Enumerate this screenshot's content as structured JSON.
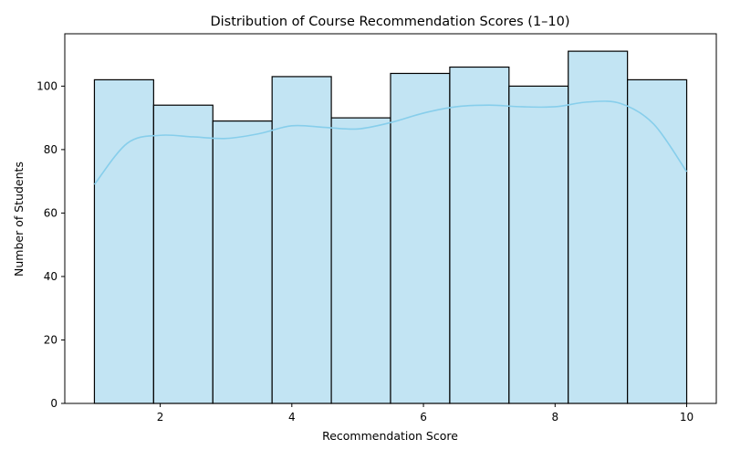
{
  "chart_data": {
    "type": "bar",
    "title": "Distribution of Course Recommendation Scores (1–10)",
    "xlabel": "Recommendation Score",
    "ylabel": "Number of Students",
    "bins": [
      {
        "start": 1.0,
        "end": 1.9,
        "count": 102
      },
      {
        "start": 1.9,
        "end": 2.8,
        "count": 94
      },
      {
        "start": 2.8,
        "end": 3.7,
        "count": 89
      },
      {
        "start": 3.7,
        "end": 4.6,
        "count": 103
      },
      {
        "start": 4.6,
        "end": 5.5,
        "count": 90
      },
      {
        "start": 5.5,
        "end": 6.4,
        "count": 104
      },
      {
        "start": 6.4,
        "end": 7.3,
        "count": 106
      },
      {
        "start": 7.3,
        "end": 8.2,
        "count": 100
      },
      {
        "start": 8.2,
        "end": 9.1,
        "count": 111
      },
      {
        "start": 9.1,
        "end": 10.0,
        "count": 102
      }
    ],
    "kde": {
      "x": [
        1.0,
        1.5,
        2.0,
        2.5,
        3.0,
        3.5,
        4.0,
        4.5,
        5.0,
        5.5,
        6.0,
        6.5,
        7.0,
        7.5,
        8.0,
        8.5,
        9.0,
        9.5,
        10.0
      ],
      "y": [
        69,
        82,
        84.5,
        84,
        83.5,
        85,
        87.5,
        87,
        86.5,
        88.5,
        91.5,
        93.5,
        94,
        93.5,
        93.5,
        95,
        94.5,
        88,
        73
      ]
    },
    "xlim": [
      0.55,
      10.45
    ],
    "ylim": [
      0,
      116.5
    ],
    "xticks": [
      2,
      4,
      6,
      8,
      10
    ],
    "yticks": [
      0,
      20,
      40,
      60,
      80,
      100
    ],
    "bar_fill": "#c2e4f3",
    "bar_edge": "#000000",
    "kde_color": "#87ceeb",
    "grid": false,
    "legend": "none"
  }
}
